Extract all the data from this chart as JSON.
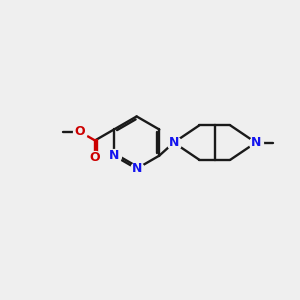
{
  "bg_color": "#efefef",
  "bond_color": "#1a1a1a",
  "n_color": "#1414ee",
  "o_color": "#cc0000",
  "lw": 1.7,
  "fs": 9.0,
  "xlim": [
    0,
    10
  ],
  "ylim": [
    0,
    10
  ]
}
